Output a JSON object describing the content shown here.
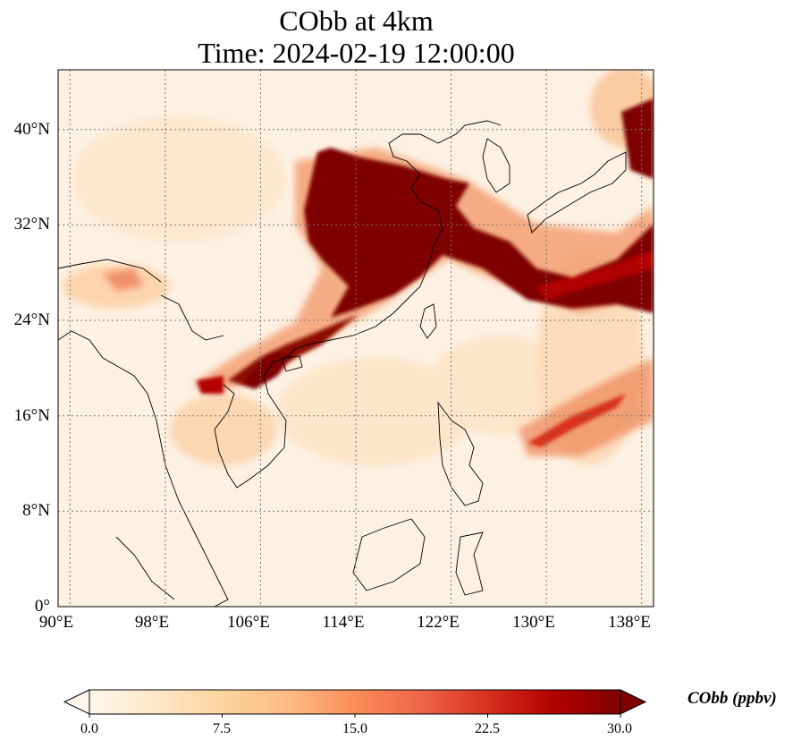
{
  "title": {
    "line1": "CObb at 4km",
    "line2": "Time: 2024-02-19 12:00:00"
  },
  "map": {
    "projection": "PlateCarree",
    "lon_range": [
      89,
      139
    ],
    "lat_range": [
      0,
      45
    ],
    "gridlines": "dotted",
    "coastlines": true,
    "borders": true,
    "xticks": [
      "90°E",
      "98°E",
      "106°E",
      "114°E",
      "122°E",
      "130°E",
      "138°E"
    ],
    "xtick_values": [
      90,
      98,
      106,
      114,
      122,
      130,
      138
    ],
    "yticks": [
      "0°",
      "8°N",
      "16°N",
      "24°N",
      "32°N",
      "40°N"
    ],
    "ytick_values": [
      0,
      8,
      16,
      24,
      32,
      40
    ]
  },
  "colorbar": {
    "label": "CObb (ppbv)",
    "colormap": "OrRd",
    "ticks": [
      "0.0",
      "7.5",
      "15.0",
      "22.5",
      "30.0"
    ],
    "range": [
      0,
      30
    ],
    "extend": "both",
    "colors": [
      "#fff7ec",
      "#fee8c8",
      "#fdd49e",
      "#fdbb84",
      "#fc8d59",
      "#ef6548",
      "#d7301f",
      "#b30000",
      "#7f0000"
    ]
  }
}
